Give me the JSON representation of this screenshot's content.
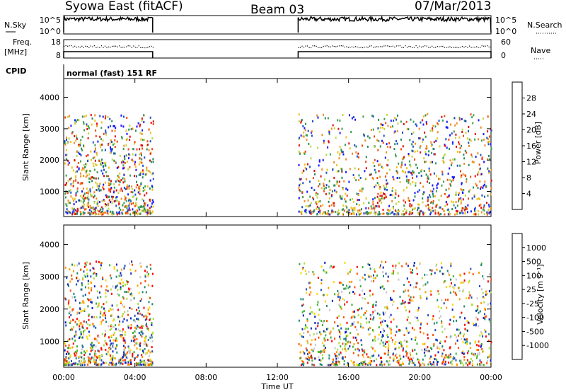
{
  "header": {
    "title_left": "Syowa East (fitACF)",
    "title_center": "Beam 03",
    "title_right": "07/Mar/2013"
  },
  "strip_labels": {
    "nsky": "N.Sky",
    "nsearch": "N.Search",
    "freq_top": "Freq.",
    "freq_unit": "[MHz]",
    "nave": "Nave",
    "cpid": "CPID",
    "cpid_text": "normal (fast) 151 RF"
  },
  "strip_ticks": {
    "noise_left": [
      "10^5",
      "10^0"
    ],
    "noise_right": [
      "10^5",
      "10^0"
    ],
    "freq_left": [
      "18",
      "8"
    ],
    "nave_right": [
      "60",
      "0"
    ]
  },
  "colors": {
    "power_scale": [
      "#1a1aff",
      "#1f50c8",
      "#2a8a5a",
      "#3aa050",
      "#bcd840",
      "#f0c020",
      "#f08c20",
      "#f04a10",
      "#e01010"
    ],
    "velocity_scale": [
      "#ff0000",
      "#ff5000",
      "#ff9a00",
      "#ffd400",
      "#c8c8c8",
      "#a8e040",
      "#40b030",
      "#208a70",
      "#2050b8",
      "#1020c0"
    ]
  },
  "chart_data": [
    {
      "type": "heatmap",
      "name": "power",
      "xlabel": "",
      "ylabel": "Slant Range [km]",
      "x_range": [
        "00:00",
        "24:00"
      ],
      "ylim": [
        200,
        4600
      ],
      "yticks": [
        "1000",
        "2000",
        "3000",
        "4000"
      ],
      "colorbar_label": "Power [dB]",
      "colorbar_ticks": [
        "4",
        "8",
        "12",
        "16",
        "20",
        "24",
        "28"
      ],
      "data_gap_UT": [
        "05:00",
        "13:10"
      ]
    },
    {
      "type": "heatmap",
      "name": "velocity",
      "xlabel": "Time UT",
      "ylabel": "Slant Range [km]",
      "x_range": [
        "00:00",
        "24:00"
      ],
      "xticks": [
        "00:00",
        "04:00",
        "08:00",
        "12:00",
        "16:00",
        "20:00",
        "00:00"
      ],
      "ylim": [
        200,
        4600
      ],
      "yticks": [
        "1000",
        "2000",
        "3000",
        "4000"
      ],
      "colorbar_label": "Velocity [m s⁻¹]",
      "colorbar_ticks": [
        "1000",
        "500",
        "100",
        "25",
        "-25",
        "-100",
        "-500",
        "-1000"
      ],
      "data_gap_UT": [
        "05:00",
        "13:10"
      ]
    }
  ]
}
